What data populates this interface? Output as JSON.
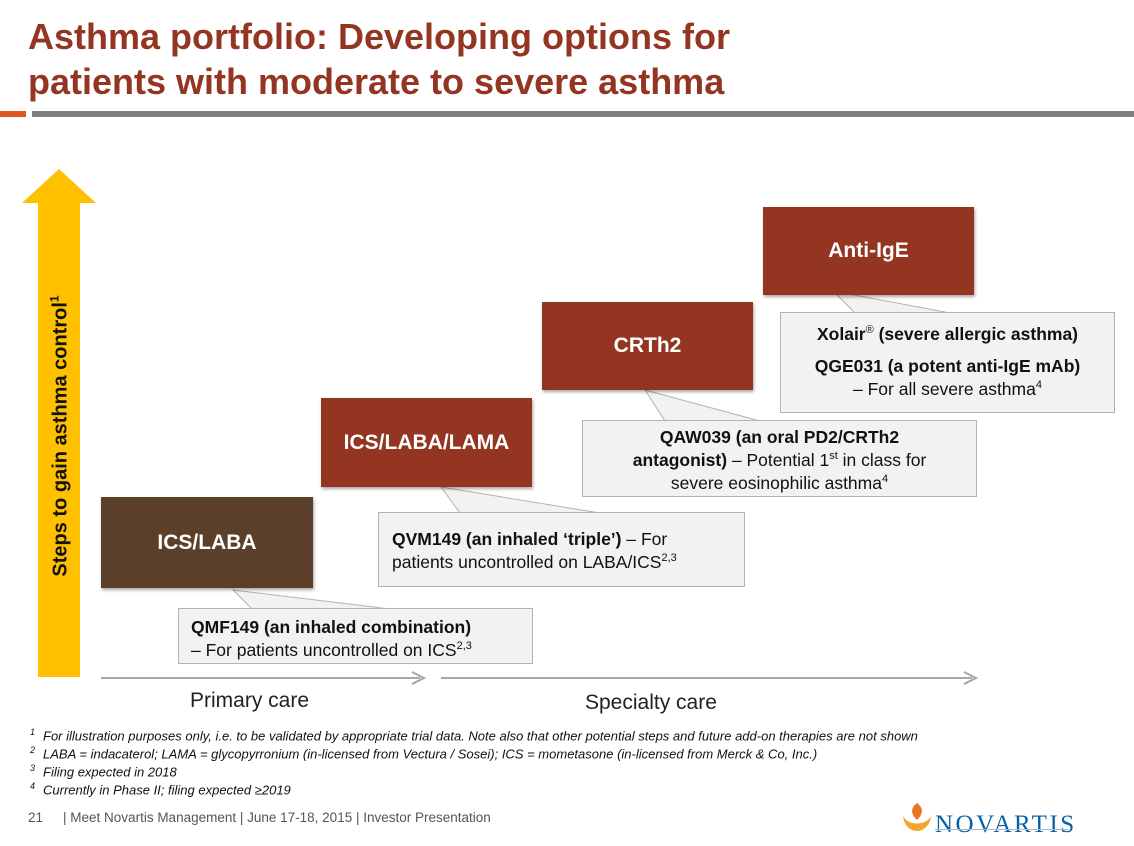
{
  "header": {
    "title_line1": "Asthma portfolio: Developing options for",
    "title_line2": "patients with moderate to severe asthma"
  },
  "y_axis": {
    "label": "Steps to gain asthma control",
    "sup": "1"
  },
  "tiers": [
    {
      "label": "ICS/LABA"
    },
    {
      "label": "ICS/LABA/LAMA"
    },
    {
      "label": "CRTh2"
    },
    {
      "label": "Anti-IgE"
    }
  ],
  "callouts": {
    "qmf149": {
      "bold": "QMF149 (an inhaled combination)",
      "text": "– For patients uncontrolled on ICS",
      "sup": "2,3"
    },
    "qvm149": {
      "bold": "QVM149 (an inhaled ‘triple’)",
      "text1": " – For",
      "text2": "patients uncontrolled on LABA/ICS",
      "sup": "2,3"
    },
    "qaw039": {
      "bold1": "QAW039 (an oral PD2/CRTh2",
      "bold2": "antagonist)",
      "text1": " – Potential 1",
      "sup1": "st",
      "text2": " in class for",
      "text3": "severe eosinophilic asthma",
      "sup2": "4"
    },
    "xolair": {
      "bold1": "Xolair",
      "reg": "®",
      "bold2": " (severe allergic asthma)",
      "bold3": "QGE031 (a potent anti-IgE mAb)",
      "text": "– For all severe asthma",
      "sup": "4"
    }
  },
  "x_axis": {
    "primary": "Primary care",
    "specialty": "Specialty care"
  },
  "footnotes": [
    {
      "num": "1",
      "text": "For illustration purposes only, i.e. to be validated by appropriate trial data. Note also that other potential steps and future add-on therapies are not shown"
    },
    {
      "num": "2",
      "text": "LABA = indacaterol; LAMA = glycopyrronium (in-licensed from Vectura / Sosei); ICS = mometasone (in-licensed from Merck & Co, Inc.)"
    },
    {
      "num": "3",
      "text": "Filing expected in 2018"
    },
    {
      "num": "4",
      "text": "Currently in Phase II; filing expected ≥2019"
    }
  ],
  "footer": {
    "page": "21",
    "text": "| Meet Novartis Management | June 17-18, 2015 | Investor Presentation"
  },
  "brand": {
    "name": "NOVARTIS"
  },
  "colors": {
    "title": "#943522",
    "tier_red": "#943522",
    "tier_brown": "#5b3f2a",
    "arrow": "#ffc000",
    "accent": "#e0561f"
  }
}
